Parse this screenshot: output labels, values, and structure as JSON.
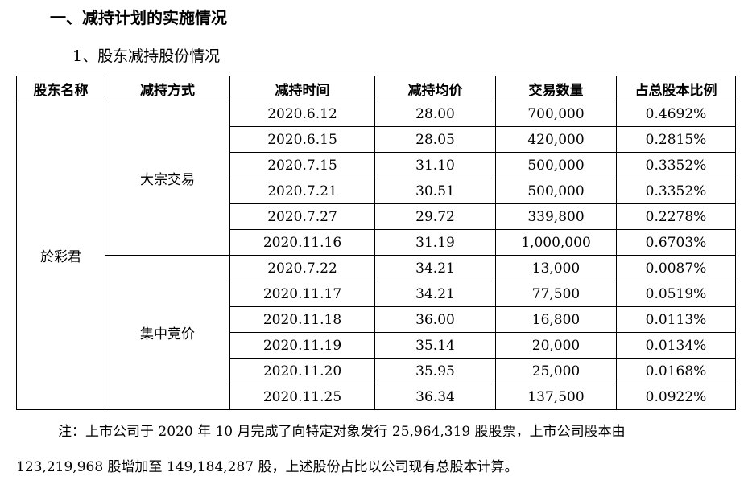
{
  "heading1": "一、减持计划的实施情况",
  "heading2": "1、股东减持股份情况",
  "table": {
    "headers": [
      "股东名称",
      "减持方式",
      "减持时间",
      "减持均价",
      "交易数量",
      "占总股本比例"
    ],
    "shareholder": "於彩君",
    "groups": [
      {
        "method": "大宗交易",
        "rows": [
          [
            "2020.6.12",
            "28.00",
            "700,000",
            "0.4692%"
          ],
          [
            "2020.6.15",
            "28.05",
            "420,000",
            "0.2815%"
          ],
          [
            "2020.7.15",
            "31.10",
            "500,000",
            "0.3352%"
          ],
          [
            "2020.7.21",
            "30.51",
            "500,000",
            "0.3352%"
          ],
          [
            "2020.7.27",
            "29.72",
            "339,800",
            "0.2278%"
          ],
          [
            "2020.11.16",
            "31.19",
            "1,000,000",
            "0.6703%"
          ]
        ]
      },
      {
        "method": "集中竞价",
        "rows": [
          [
            "2020.7.22",
            "34.21",
            "13,000",
            "0.0087%"
          ],
          [
            "2020.11.17",
            "34.21",
            "77,500",
            "0.0519%"
          ],
          [
            "2020.11.18",
            "36.00",
            "16,800",
            "0.0113%"
          ],
          [
            "2020.11.19",
            "35.14",
            "20,000",
            "0.0134%"
          ],
          [
            "2020.11.20",
            "35.95",
            "25,000",
            "0.0168%"
          ],
          [
            "2020.11.25",
            "36.34",
            "137,500",
            "0.0922%"
          ]
        ]
      }
    ]
  },
  "note_line1": "注：上市公司于 2020 年 10 月完成了向特定对象发行 25,964,319 股股票，上市公司股本由",
  "note_line2": "123,219,968 股增加至 149,184,287 股，上述股份占比以公司现有总股本计算。"
}
